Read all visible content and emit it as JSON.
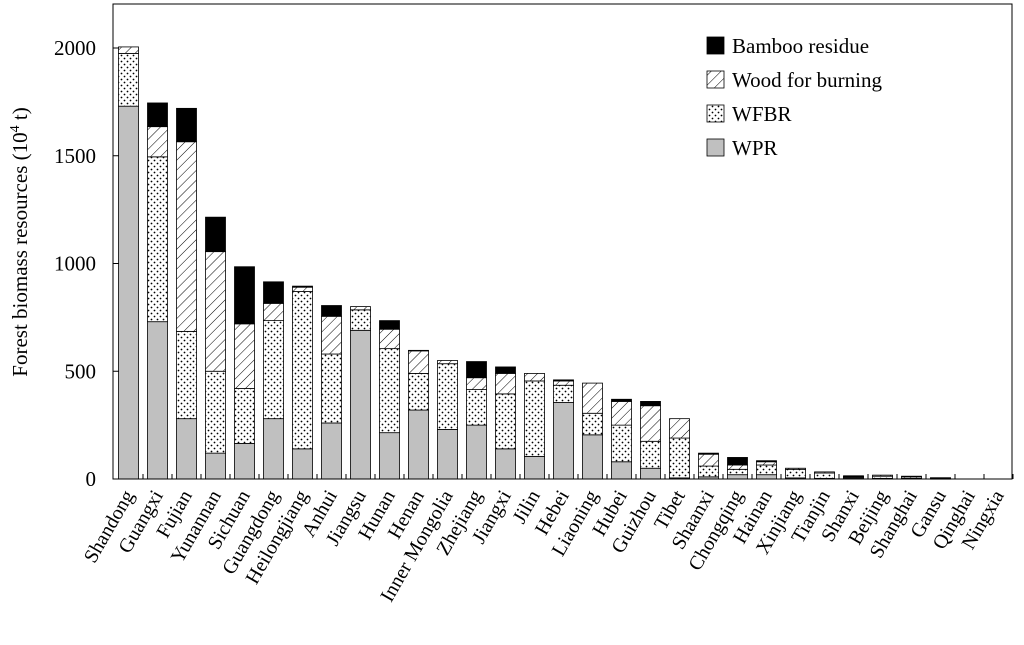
{
  "chart_data": {
    "type": "bar",
    "stacked": true,
    "title": "",
    "xlabel": "",
    "ylabel": "Forest biomass resources (10",
    "ylabel_sup": "4",
    "ylabel_tail": " t)",
    "ylim": [
      0,
      2200
    ],
    "yticks": [
      0,
      500,
      1000,
      1500,
      2000
    ],
    "legend_position": "top-right",
    "categories": [
      "Shandong",
      "Guangxi",
      "Fujian",
      "Yunannan",
      "Sichuan",
      "Guangdong",
      "Heilongjiang",
      "Anhui",
      "Jiangsu",
      "Hunan",
      "Henan",
      "Inner Mongolia",
      "Zhejiang",
      "Jiangxi",
      "Jilin",
      "Hebei",
      "Liaoning",
      "Hubei",
      "Guizhou",
      "Tibet",
      "Shaanxi",
      "Chongqing",
      "Hainan",
      "Xinjiang",
      "Tianjin",
      "Shanxi",
      "Beijing",
      "Shanghai",
      "Gansu",
      "Qinghai",
      "Ningxia"
    ],
    "series": [
      {
        "name": "WPR",
        "style": "gray",
        "values": [
          1730,
          730,
          280,
          120,
          165,
          280,
          140,
          260,
          690,
          215,
          320,
          230,
          250,
          140,
          105,
          355,
          205,
          80,
          50,
          5,
          10,
          20,
          20,
          5,
          3,
          5,
          3,
          3,
          2,
          0,
          0
        ]
      },
      {
        "name": "WFBR",
        "style": "dots",
        "values": [
          245,
          765,
          405,
          380,
          255,
          455,
          730,
          320,
          95,
          390,
          170,
          305,
          165,
          255,
          350,
          80,
          100,
          170,
          125,
          185,
          50,
          25,
          45,
          40,
          25,
          5,
          10,
          7,
          2,
          0,
          0
        ]
      },
      {
        "name": "Wood for burning",
        "style": "hatch",
        "values": [
          30,
          140,
          880,
          555,
          300,
          80,
          20,
          175,
          15,
          90,
          105,
          15,
          55,
          95,
          35,
          20,
          140,
          110,
          165,
          90,
          55,
          20,
          15,
          5,
          5,
          2,
          5,
          3,
          1,
          0,
          0
        ]
      },
      {
        "name": "Bamboo residue",
        "style": "black",
        "values": [
          0,
          110,
          155,
          160,
          265,
          100,
          5,
          50,
          0,
          40,
          2,
          0,
          75,
          30,
          0,
          5,
          0,
          10,
          20,
          0,
          5,
          35,
          5,
          0,
          0,
          3,
          0,
          0,
          1,
          0,
          0
        ]
      }
    ],
    "legend_order": [
      "Bamboo residue",
      "Wood for burning",
      "WFBR",
      "WPR"
    ],
    "colors": {
      "WPR": "#c0c0c0",
      "bamboo": "#000000",
      "axis": "#000000",
      "background": "#ffffff"
    }
  }
}
